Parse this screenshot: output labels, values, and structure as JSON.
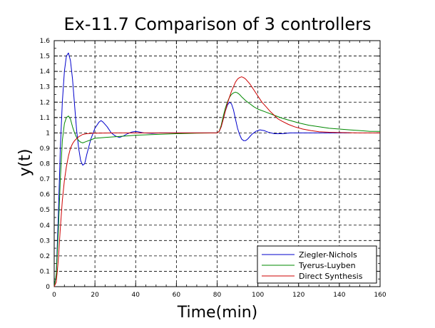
{
  "chart_data": {
    "type": "line",
    "title": "Ex-11.7 Comparison of 3 controllers",
    "xlabel": "Time(min)",
    "ylabel": "y(t)",
    "xlim": [
      0,
      160
    ],
    "ylim": [
      0,
      1.6
    ],
    "grid": true,
    "legend_position": "bottom-right",
    "x_ticks": [
      "0",
      "20",
      "40",
      "60",
      "80",
      "100",
      "120",
      "140",
      "160"
    ],
    "y_ticks": [
      "0",
      "0.1",
      "0.2",
      "0.3",
      "0.4",
      "0.5",
      "0.6",
      "0.7",
      "0.8",
      "0.9",
      "1",
      "1.1",
      "1.2",
      "1.3",
      "1.4",
      "1.5",
      "1.6"
    ],
    "series": [
      {
        "name": "Ziegler-Nichols",
        "color": "#0000cc",
        "points": [
          [
            0,
            0
          ],
          [
            1,
            0.08
          ],
          [
            2,
            0.45
          ],
          [
            3,
            0.9
          ],
          [
            4,
            1.2
          ],
          [
            5,
            1.4
          ],
          [
            6,
            1.5
          ],
          [
            7,
            1.52
          ],
          [
            8,
            1.47
          ],
          [
            9,
            1.35
          ],
          [
            10,
            1.18
          ],
          [
            11,
            1.02
          ],
          [
            12,
            0.9
          ],
          [
            13,
            0.82
          ],
          [
            14,
            0.79
          ],
          [
            15,
            0.8
          ],
          [
            16,
            0.86
          ],
          [
            18,
            0.96
          ],
          [
            20,
            1.03
          ],
          [
            22,
            1.07
          ],
          [
            23,
            1.08
          ],
          [
            24,
            1.07
          ],
          [
            26,
            1.04
          ],
          [
            28,
            1.0
          ],
          [
            30,
            0.98
          ],
          [
            32,
            0.97
          ],
          [
            34,
            0.98
          ],
          [
            36,
            0.995
          ],
          [
            38,
            1.005
          ],
          [
            40,
            1.01
          ],
          [
            42,
            1.005
          ],
          [
            44,
            1.0
          ],
          [
            48,
            0.997
          ],
          [
            52,
            1.0
          ],
          [
            60,
            1.0
          ],
          [
            70,
            1.0
          ],
          [
            80,
            1.0
          ],
          [
            81,
            1.01
          ],
          [
            82,
            1.04
          ],
          [
            83,
            1.09
          ],
          [
            84,
            1.14
          ],
          [
            85,
            1.18
          ],
          [
            86,
            1.2
          ],
          [
            87,
            1.19
          ],
          [
            88,
            1.15
          ],
          [
            89,
            1.09
          ],
          [
            90,
            1.03
          ],
          [
            91,
            0.99
          ],
          [
            92,
            0.96
          ],
          [
            93,
            0.95
          ],
          [
            94,
            0.95
          ],
          [
            95,
            0.96
          ],
          [
            97,
            0.99
          ],
          [
            99,
            1.01
          ],
          [
            101,
            1.02
          ],
          [
            103,
            1.015
          ],
          [
            105,
            1.005
          ],
          [
            108,
            0.995
          ],
          [
            112,
            0.995
          ],
          [
            116,
            1.0
          ],
          [
            130,
            1.0
          ],
          [
            145,
            1.0
          ]
        ]
      },
      {
        "name": "Tyerus-Luyben",
        "color": "#008800",
        "points": [
          [
            0,
            0
          ],
          [
            1,
            0.08
          ],
          [
            2,
            0.35
          ],
          [
            3,
            0.7
          ],
          [
            4,
            0.95
          ],
          [
            5,
            1.06
          ],
          [
            6,
            1.1
          ],
          [
            7,
            1.11
          ],
          [
            8,
            1.09
          ],
          [
            9,
            1.04
          ],
          [
            10,
            1.0
          ],
          [
            11,
            0.97
          ],
          [
            12,
            0.95
          ],
          [
            13,
            0.94
          ],
          [
            14,
            0.935
          ],
          [
            15,
            0.94
          ],
          [
            16,
            0.945
          ],
          [
            18,
            0.955
          ],
          [
            20,
            0.965
          ],
          [
            25,
            0.97
          ],
          [
            30,
            0.975
          ],
          [
            35,
            0.98
          ],
          [
            40,
            0.985
          ],
          [
            50,
            0.99
          ],
          [
            60,
            0.995
          ],
          [
            70,
            0.998
          ],
          [
            80,
            1.0
          ],
          [
            81,
            1.01
          ],
          [
            82,
            1.05
          ],
          [
            83,
            1.11
          ],
          [
            84,
            1.16
          ],
          [
            85,
            1.2
          ],
          [
            86,
            1.23
          ],
          [
            87,
            1.25
          ],
          [
            88,
            1.26
          ],
          [
            89,
            1.265
          ],
          [
            90,
            1.26
          ],
          [
            91,
            1.25
          ],
          [
            92,
            1.235
          ],
          [
            94,
            1.21
          ],
          [
            96,
            1.19
          ],
          [
            98,
            1.17
          ],
          [
            100,
            1.155
          ],
          [
            104,
            1.135
          ],
          [
            108,
            1.115
          ],
          [
            112,
            1.095
          ],
          [
            116,
            1.08
          ],
          [
            120,
            1.065
          ],
          [
            125,
            1.05
          ],
          [
            130,
            1.04
          ],
          [
            135,
            1.03
          ],
          [
            140,
            1.025
          ],
          [
            145,
            1.02
          ],
          [
            150,
            1.015
          ],
          [
            155,
            1.01
          ],
          [
            160,
            1.01
          ]
        ]
      },
      {
        "name": "Direct Synthesis",
        "color": "#cc0000",
        "points": [
          [
            0,
            0
          ],
          [
            1,
            0.03
          ],
          [
            2,
            0.17
          ],
          [
            3,
            0.38
          ],
          [
            4,
            0.56
          ],
          [
            5,
            0.69
          ],
          [
            6,
            0.78
          ],
          [
            7,
            0.85
          ],
          [
            8,
            0.9
          ],
          [
            9,
            0.93
          ],
          [
            10,
            0.95
          ],
          [
            12,
            0.975
          ],
          [
            14,
            0.99
          ],
          [
            16,
            0.995
          ],
          [
            18,
            0.997
          ],
          [
            20,
            0.998
          ],
          [
            30,
            1.0
          ],
          [
            40,
            1.0
          ],
          [
            60,
            1.0
          ],
          [
            80,
            1.0
          ],
          [
            81,
            1.01
          ],
          [
            82,
            1.04
          ],
          [
            83,
            1.09
          ],
          [
            84,
            1.14
          ],
          [
            85,
            1.19
          ],
          [
            86,
            1.23
          ],
          [
            87,
            1.27
          ],
          [
            88,
            1.3
          ],
          [
            89,
            1.33
          ],
          [
            90,
            1.35
          ],
          [
            91,
            1.36
          ],
          [
            92,
            1.365
          ],
          [
            93,
            1.36
          ],
          [
            94,
            1.35
          ],
          [
            96,
            1.32
          ],
          [
            98,
            1.28
          ],
          [
            100,
            1.24
          ],
          [
            102,
            1.2
          ],
          [
            104,
            1.17
          ],
          [
            106,
            1.14
          ],
          [
            108,
            1.115
          ],
          [
            110,
            1.09
          ],
          [
            112,
            1.075
          ],
          [
            115,
            1.055
          ],
          [
            118,
            1.04
          ],
          [
            122,
            1.025
          ],
          [
            126,
            1.015
          ],
          [
            130,
            1.008
          ],
          [
            135,
            1.004
          ],
          [
            140,
            1.002
          ],
          [
            150,
            1.0
          ],
          [
            160,
            1.0
          ]
        ]
      }
    ]
  }
}
